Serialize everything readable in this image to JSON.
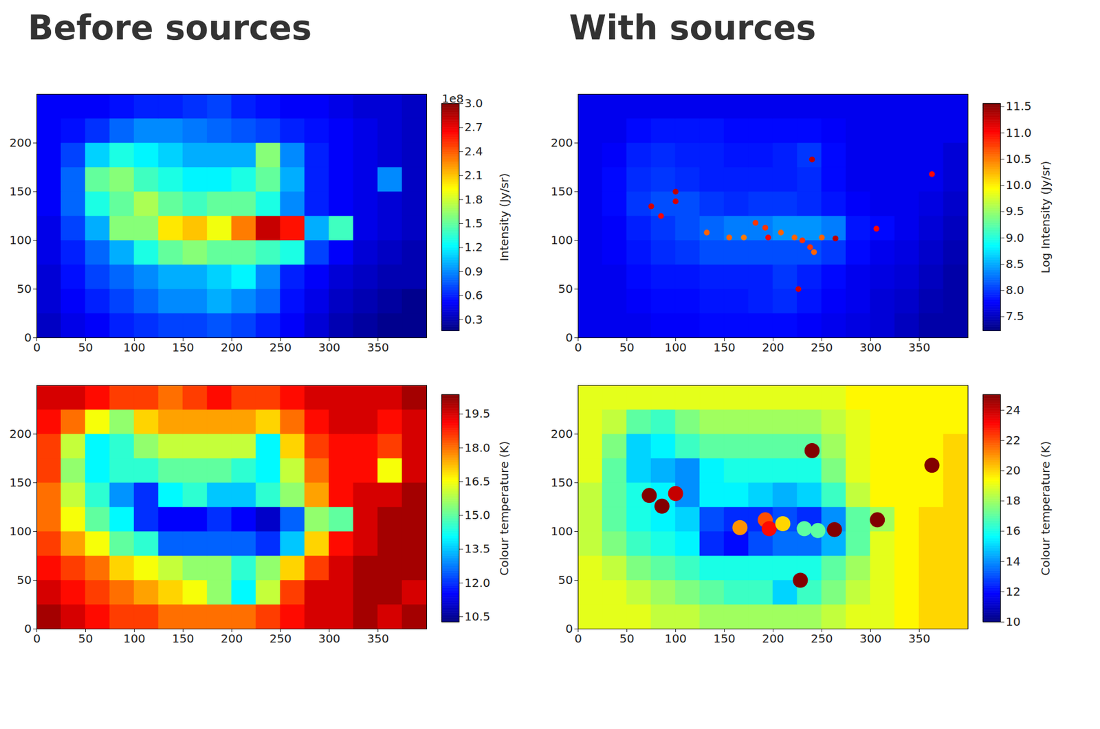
{
  "chart_data": [
    {
      "type": "heatmap",
      "title": "Before sources",
      "xlim": [
        0,
        400
      ],
      "ylim": [
        0,
        250
      ],
      "xticks": [
        0,
        50,
        100,
        150,
        200,
        250,
        300,
        350
      ],
      "yticks": [
        0,
        50,
        100,
        150,
        200
      ],
      "x_edges": [
        0,
        25,
        50,
        75,
        100,
        125,
        150,
        175,
        200,
        225,
        250,
        275,
        300,
        325,
        350,
        375,
        400
      ],
      "y_edges": [
        0,
        25,
        50,
        75,
        100,
        125,
        150,
        175,
        200,
        225,
        250
      ],
      "cells": [
        [
          0.35,
          0.45,
          0.5,
          0.6,
          0.65,
          0.7,
          0.7,
          0.75,
          0.7,
          0.6,
          0.5,
          0.4,
          0.3,
          0.25,
          0.2,
          0.2
        ],
        [
          0.4,
          0.5,
          0.6,
          0.7,
          0.8,
          0.9,
          0.9,
          1.0,
          0.9,
          0.8,
          0.55,
          0.45,
          0.35,
          0.3,
          0.25,
          0.2
        ],
        [
          0.4,
          0.55,
          0.7,
          0.8,
          0.9,
          1.0,
          1.0,
          1.1,
          1.2,
          0.9,
          0.6,
          0.5,
          0.4,
          0.35,
          0.3,
          0.3
        ],
        [
          0.45,
          0.6,
          0.8,
          1.0,
          1.3,
          1.5,
          1.6,
          1.5,
          1.5,
          1.4,
          1.3,
          0.7,
          0.5,
          0.4,
          0.35,
          0.3
        ],
        [
          0.45,
          0.7,
          1.0,
          1.6,
          1.6,
          2.0,
          2.1,
          1.9,
          2.3,
          2.8,
          2.6,
          1.0,
          1.4,
          0.45,
          0.4,
          0.35
        ],
        [
          0.5,
          0.8,
          1.3,
          1.5,
          1.7,
          1.5,
          1.4,
          1.5,
          1.5,
          1.3,
          0.9,
          0.6,
          0.5,
          0.45,
          0.4,
          0.35
        ],
        [
          0.5,
          0.8,
          1.5,
          1.6,
          1.4,
          1.3,
          1.2,
          1.2,
          1.3,
          1.5,
          1.0,
          0.6,
          0.5,
          0.45,
          0.9,
          0.35
        ],
        [
          0.5,
          0.7,
          1.1,
          1.3,
          1.2,
          1.1,
          1.0,
          1.0,
          1.0,
          1.6,
          0.9,
          0.6,
          0.5,
          0.45,
          0.4,
          0.35
        ],
        [
          0.5,
          0.55,
          0.65,
          0.8,
          0.9,
          0.9,
          0.85,
          0.8,
          0.75,
          0.7,
          0.6,
          0.55,
          0.5,
          0.45,
          0.4,
          0.35
        ],
        [
          0.5,
          0.5,
          0.5,
          0.55,
          0.6,
          0.6,
          0.65,
          0.7,
          0.6,
          0.55,
          0.5,
          0.5,
          0.45,
          0.4,
          0.4,
          0.35
        ]
      ],
      "colorbar": {
        "label": "Intensity (Jy/sr)",
        "offset_text": "1e8",
        "lim": [
          0.16,
          3.0
        ],
        "ticks": [
          0.3,
          0.6,
          0.9,
          1.2,
          1.5,
          1.8,
          2.1,
          2.4,
          2.7,
          {
            "value": 3.0,
            "label": "3.0"
          }
        ]
      }
    },
    {
      "type": "heatmap",
      "title": "With sources",
      "xlim": [
        0,
        400
      ],
      "ylim": [
        0,
        250
      ],
      "xticks": [
        0,
        50,
        100,
        150,
        200,
        250,
        300,
        350
      ],
      "yticks": [
        0,
        50,
        100,
        150,
        200
      ],
      "x_edges": [
        0,
        25,
        50,
        75,
        100,
        125,
        150,
        175,
        200,
        225,
        250,
        275,
        300,
        325,
        350,
        375,
        400
      ],
      "y_edges": [
        0,
        25,
        50,
        75,
        100,
        125,
        150,
        175,
        200,
        225,
        250
      ],
      "cells": [
        [
          7.7,
          7.7,
          7.7,
          7.75,
          7.75,
          7.8,
          7.8,
          7.8,
          7.8,
          7.75,
          7.7,
          7.65,
          7.6,
          7.5,
          7.4,
          7.4
        ],
        [
          7.7,
          7.7,
          7.75,
          7.8,
          7.8,
          7.85,
          7.85,
          7.9,
          7.95,
          7.85,
          7.75,
          7.7,
          7.6,
          7.55,
          7.45,
          7.4
        ],
        [
          7.7,
          7.7,
          7.8,
          7.85,
          7.85,
          7.9,
          7.9,
          7.9,
          8.0,
          7.9,
          7.8,
          7.7,
          7.65,
          7.6,
          7.5,
          7.4
        ],
        [
          7.7,
          7.75,
          7.85,
          7.95,
          8.0,
          8.1,
          8.1,
          8.1,
          8.1,
          8.1,
          8.0,
          7.8,
          7.7,
          7.65,
          7.55,
          7.45
        ],
        [
          7.7,
          7.75,
          7.9,
          8.0,
          8.1,
          8.2,
          8.3,
          8.3,
          8.4,
          8.4,
          8.3,
          7.85,
          7.8,
          7.7,
          7.6,
          7.5
        ],
        [
          7.7,
          7.8,
          8.0,
          8.1,
          8.1,
          8.0,
          7.95,
          8.0,
          8.0,
          7.95,
          7.85,
          7.75,
          7.7,
          7.7,
          7.65,
          7.55
        ],
        [
          7.7,
          7.8,
          7.95,
          8.0,
          7.95,
          7.9,
          7.9,
          7.9,
          7.9,
          7.95,
          7.8,
          7.7,
          7.7,
          7.7,
          7.7,
          7.6
        ],
        [
          7.7,
          7.75,
          7.9,
          7.95,
          7.9,
          7.9,
          7.85,
          7.85,
          7.9,
          8.0,
          7.8,
          7.7,
          7.7,
          7.7,
          7.7,
          7.6
        ],
        [
          7.7,
          7.7,
          7.8,
          7.85,
          7.85,
          7.85,
          7.8,
          7.8,
          7.8,
          7.8,
          7.75,
          7.7,
          7.7,
          7.7,
          7.7,
          7.7
        ],
        [
          7.7,
          7.7,
          7.7,
          7.7,
          7.7,
          7.7,
          7.7,
          7.7,
          7.7,
          7.7,
          7.7,
          7.7,
          7.7,
          7.7,
          7.7,
          7.7
        ]
      ],
      "sources": {
        "x": [
          75,
          85,
          100,
          100,
          132,
          155,
          170,
          182,
          192,
          195,
          208,
          222,
          230,
          238,
          242,
          250,
          264,
          240,
          363,
          306,
          226
        ],
        "y": [
          135,
          125,
          150,
          140,
          108,
          103,
          103,
          118,
          113,
          103,
          108,
          103,
          100,
          93,
          88,
          103,
          102,
          183,
          168,
          112,
          50
        ],
        "values": [
          11.2,
          11.0,
          11.3,
          11.2,
          10.6,
          10.6,
          10.5,
          10.8,
          10.8,
          11.0,
          10.6,
          10.6,
          10.8,
          10.8,
          10.6,
          10.6,
          11.3,
          11.3,
          11.0,
          11.0,
          11.2
        ]
      },
      "colorbar": {
        "label": "Log Intensity (Jy/sr)",
        "lim": [
          7.23,
          11.56
        ],
        "ticks": [
          7.5,
          {
            "value": 8,
            "label": "8.0"
          },
          8.5,
          {
            "value": 9,
            "label": "9.0"
          },
          9.5,
          {
            "value": 10,
            "label": "10.0"
          },
          10.5,
          {
            "value": 11,
            "label": "11.0"
          },
          11.5
        ]
      }
    },
    {
      "type": "heatmap",
      "xlim": [
        0,
        400
      ],
      "ylim": [
        0,
        250
      ],
      "xticks": [
        0,
        50,
        100,
        150,
        200,
        250,
        300,
        350
      ],
      "yticks": [
        0,
        50,
        100,
        150,
        200
      ],
      "x_edges": [
        0,
        25,
        50,
        75,
        100,
        125,
        150,
        175,
        200,
        225,
        250,
        275,
        300,
        325,
        350,
        375,
        400
      ],
      "y_edges": [
        0,
        25,
        50,
        75,
        100,
        125,
        150,
        175,
        200,
        225,
        250
      ],
      "cells": [
        [
          20.0,
          19.5,
          19.0,
          18.5,
          18.5,
          18.0,
          18.0,
          18.0,
          18.0,
          18.5,
          19.0,
          19.5,
          19.5,
          20.0,
          19.5,
          20.0
        ],
        [
          19.5,
          19.0,
          18.5,
          18.0,
          17.5,
          17.0,
          16.5,
          15.5,
          14.0,
          16.0,
          18.5,
          19.5,
          19.5,
          20.0,
          20.0,
          19.5
        ],
        [
          19.0,
          18.5,
          18.0,
          17.0,
          16.5,
          16.0,
          15.5,
          15.5,
          14.5,
          15.5,
          17.0,
          18.5,
          19.5,
          20.0,
          20.0,
          20.0
        ],
        [
          18.5,
          17.5,
          16.5,
          15.0,
          14.5,
          12.5,
          12.5,
          12.5,
          12.5,
          12.0,
          13.5,
          17.0,
          19.0,
          19.5,
          20.0,
          20.0
        ],
        [
          18.0,
          16.5,
          15.0,
          14.0,
          12.0,
          11.5,
          11.5,
          12.0,
          11.5,
          11.0,
          12.5,
          15.5,
          15.0,
          19.5,
          20.0,
          20.0
        ],
        [
          18.0,
          16.0,
          14.5,
          13.0,
          12.0,
          14.0,
          14.5,
          13.5,
          13.5,
          14.5,
          15.5,
          17.5,
          19.0,
          19.5,
          19.5,
          20.0
        ],
        [
          18.5,
          15.5,
          14.0,
          14.5,
          14.5,
          15.0,
          15.0,
          15.0,
          14.5,
          14.0,
          16.0,
          18.0,
          19.0,
          19.0,
          16.5,
          19.5
        ],
        [
          18.5,
          16.0,
          14.0,
          14.5,
          15.5,
          16.0,
          16.0,
          16.0,
          16.0,
          14.0,
          17.0,
          18.5,
          19.0,
          19.0,
          18.5,
          19.5
        ],
        [
          19.0,
          18.0,
          16.5,
          15.5,
          17.0,
          17.5,
          17.5,
          17.5,
          17.5,
          17.0,
          18.0,
          19.0,
          19.5,
          19.5,
          19.0,
          19.5
        ],
        [
          19.5,
          19.5,
          19.0,
          18.5,
          18.5,
          18.0,
          18.5,
          19.0,
          18.5,
          18.5,
          19.0,
          19.5,
          19.5,
          19.5,
          19.5,
          20.0
        ]
      ],
      "colorbar": {
        "label": "Colour temperature (K)",
        "lim": [
          10.27,
          20.36
        ],
        "ticks": [
          10.5,
          {
            "value": 12,
            "label": "12.0"
          },
          13.5,
          {
            "value": 15,
            "label": "15.0"
          },
          16.5,
          {
            "value": 18,
            "label": "18.0"
          },
          19.5
        ]
      }
    },
    {
      "type": "heatmap",
      "xlim": [
        0,
        400
      ],
      "ylim": [
        0,
        250
      ],
      "xticks": [
        0,
        50,
        100,
        150,
        200,
        250,
        300,
        350
      ],
      "yticks": [
        0,
        50,
        100,
        150,
        200
      ],
      "x_edges": [
        0,
        25,
        50,
        75,
        100,
        125,
        150,
        175,
        200,
        225,
        250,
        275,
        300,
        325,
        350,
        375,
        400
      ],
      "y_edges": [
        0,
        25,
        50,
        75,
        100,
        125,
        150,
        175,
        200,
        225,
        250
      ],
      "cells": [
        [
          19,
          19,
          19,
          18.5,
          18.5,
          18,
          18,
          18,
          18,
          18,
          18.5,
          19,
          19,
          19.5,
          20,
          20
        ],
        [
          19,
          19,
          18.5,
          18,
          17.5,
          17,
          16.5,
          16.5,
          15,
          16.5,
          17.5,
          18.5,
          19,
          19.5,
          20,
          20
        ],
        [
          19,
          18.5,
          17.5,
          17,
          16.5,
          16,
          16,
          16,
          16,
          16,
          17,
          18,
          19,
          19.5,
          20,
          20
        ],
        [
          18.5,
          17.5,
          16.5,
          16,
          15.5,
          12.5,
          12,
          13,
          13.5,
          13.5,
          14.5,
          17,
          19,
          19.5,
          20,
          20
        ],
        [
          18.5,
          17,
          16,
          15.5,
          15,
          13,
          12.5,
          12.5,
          13,
          12.5,
          14,
          17,
          18,
          19.5,
          20,
          20
        ],
        [
          18.5,
          17,
          16,
          15.5,
          14,
          15.5,
          15.5,
          15,
          14.5,
          15,
          16.5,
          18.5,
          19.5,
          19.5,
          19.5,
          20
        ],
        [
          19,
          17,
          15,
          14.5,
          14,
          15.5,
          16,
          16,
          16,
          16,
          17.5,
          19,
          19.5,
          19.5,
          19.5,
          20
        ],
        [
          19,
          17.5,
          15,
          15.5,
          16.5,
          17,
          17,
          17,
          17,
          17,
          18,
          19,
          19.5,
          19.5,
          19.5,
          20
        ],
        [
          19,
          18.5,
          17,
          16.5,
          17.5,
          18,
          18,
          18,
          18,
          18,
          18.5,
          19,
          19.5,
          19.5,
          19.5,
          19.5
        ],
        [
          19,
          19,
          19,
          19,
          19,
          19,
          19,
          19,
          19,
          19,
          19,
          19.5,
          19.5,
          19.5,
          19.5,
          19.5
        ]
      ],
      "sources": {
        "x": [
          73,
          86,
          100,
          240,
          363,
          307,
          263,
          228,
          166,
          192,
          196,
          210,
          232,
          246
        ],
        "y": [
          137,
          126,
          139,
          183,
          168,
          112,
          102,
          50,
          104,
          112,
          103,
          108,
          103,
          101
        ],
        "values": [
          25,
          25,
          24,
          25,
          25,
          25,
          25,
          25,
          21,
          22,
          23,
          20,
          17,
          17
        ]
      },
      "colorbar": {
        "label": "Colour temperature (K)",
        "lim": [
          10,
          25.03
        ],
        "ticks": [
          10,
          12,
          14,
          16,
          18,
          20,
          22,
          24
        ]
      }
    }
  ]
}
